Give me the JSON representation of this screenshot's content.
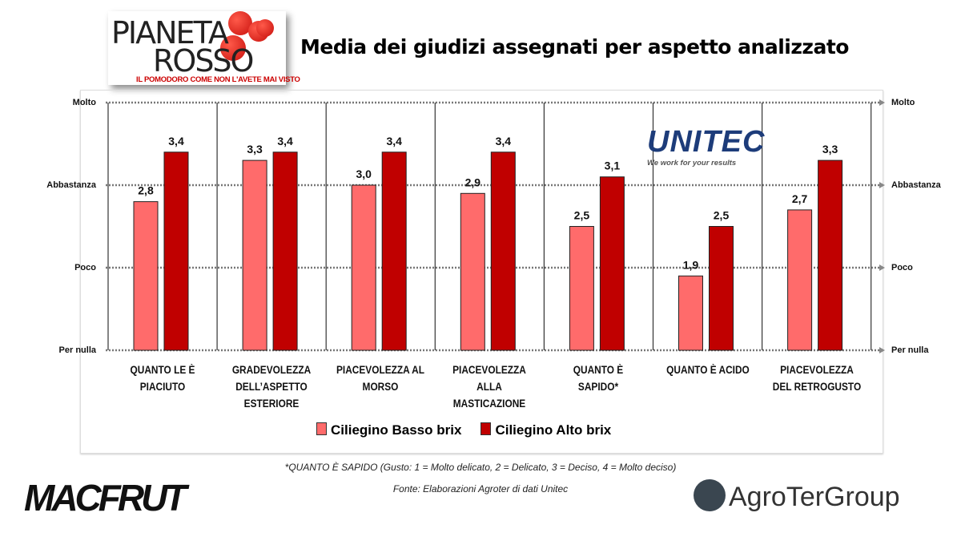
{
  "logos": {
    "pianeta_rosso_line1": "PIANETA",
    "pianeta_rosso_line2": "ROSSO",
    "pianeta_rosso_tagline": "IL POMODORO COME NON L'AVETE MAI VISTO",
    "unitec": "UNITEC",
    "unitec_slogan": "We work for your results",
    "macfrut": "MACFRUT",
    "agroter": "AgroTerGroup"
  },
  "colors": {
    "basso": "#ff6b6b",
    "alto": "#c00000"
  },
  "footnote": "*QUANTO È SAPIDO (Gusto: 1 = Molto delicato, 2 = Delicato, 3 = Deciso, 4 = Molto deciso)",
  "source": "Fonte: Elaborazioni Agroter di dati Unitec",
  "chart_data": {
    "type": "bar",
    "title": "Media dei giudizi assegnati per aspetto analizzato",
    "categories": [
      "QUANTO LE È\nPIACIUTO",
      "GRADEVOLEZZA\nDELL’ASPETTO\nESTERIORE",
      "PIACEVOLEZZA AL\nMORSO",
      "PIACEVOLEZZA\nALLA\nMASTICAZIONE",
      "QUANTO È\nSAPIDO*",
      "QUANTO È ACIDO",
      "PIACEVOLEZZA\nDEL RETROGUSTO"
    ],
    "series": [
      {
        "name": "Ciliegino Basso brix",
        "values": [
          2.8,
          3.3,
          3.0,
          2.9,
          2.5,
          1.9,
          2.7
        ],
        "labels": [
          "2,8",
          "3,3",
          "3,0",
          "2,9",
          "2,5",
          "1,9",
          "2,7"
        ]
      },
      {
        "name": "Ciliegino Alto brix",
        "values": [
          3.4,
          3.4,
          3.4,
          3.4,
          3.1,
          2.5,
          3.3
        ],
        "labels": [
          "3,4",
          "3,4",
          "3,4",
          "3,4",
          "3,1",
          "2,5",
          "3,3"
        ]
      }
    ],
    "ylim": [
      1,
      4
    ],
    "yticks": [
      {
        "value": 4,
        "label": "Molto"
      },
      {
        "value": 3,
        "label": "Abbastanza"
      },
      {
        "value": 2,
        "label": "Poco"
      },
      {
        "value": 1,
        "label": "Per nulla"
      }
    ],
    "grid": "dotted",
    "legend": "bottom"
  }
}
